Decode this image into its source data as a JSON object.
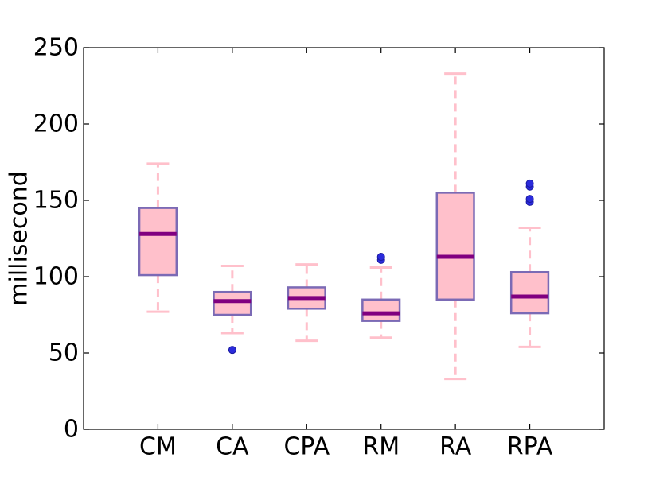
{
  "chart_data": {
    "type": "boxplot",
    "title": "",
    "xlabel": "",
    "ylabel": "millisecond",
    "ylim": [
      0,
      250
    ],
    "yticks": [
      0,
      50,
      100,
      150,
      200,
      250
    ],
    "grid": false,
    "categories": [
      "CM",
      "CA",
      "CPA",
      "RM",
      "RA",
      "RPA"
    ],
    "boxes": [
      {
        "label": "CM",
        "whisker_low": 77,
        "q1": 101,
        "median": 128,
        "q3": 145,
        "whisker_high": 174,
        "outliers": []
      },
      {
        "label": "CA",
        "whisker_low": 63,
        "q1": 75,
        "median": 84,
        "q3": 90,
        "whisker_high": 107,
        "outliers": [
          52
        ]
      },
      {
        "label": "CPA",
        "whisker_low": 58,
        "q1": 79,
        "median": 86,
        "q3": 93,
        "whisker_high": 108,
        "outliers": []
      },
      {
        "label": "RM",
        "whisker_low": 60,
        "q1": 71,
        "median": 76,
        "q3": 85,
        "whisker_high": 106,
        "outliers": [
          111,
          113
        ]
      },
      {
        "label": "RA",
        "whisker_low": 33,
        "q1": 85,
        "median": 113,
        "q3": 155,
        "whisker_high": 233,
        "outliers": []
      },
      {
        "label": "RPA",
        "whisker_low": 54,
        "q1": 76,
        "median": 87,
        "q3": 103,
        "whisker_high": 132,
        "outliers": [
          149,
          151,
          159,
          161
        ]
      }
    ],
    "colors": {
      "box_fill": "#ffc0cb",
      "box_edge": "#7b6ab5",
      "median": "#800080",
      "whisker": "#ffc0cb",
      "outlier": "#2b2bdc"
    }
  }
}
